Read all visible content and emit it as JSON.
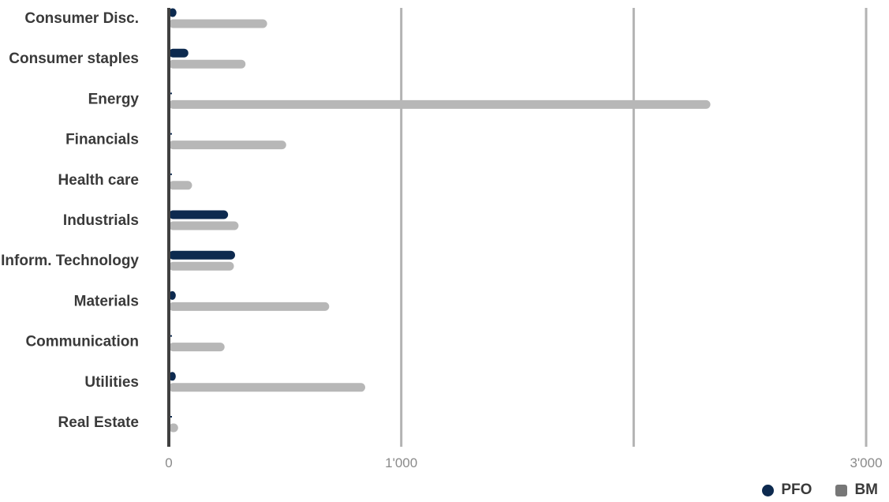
{
  "chart_data": {
    "type": "bar",
    "orientation": "horizontal",
    "categories": [
      "Consumer Disc.",
      "Consumer staples",
      "Energy",
      "Financials",
      "Health care",
      "Industrials",
      "Inform. Technology",
      "Materials",
      "Communication",
      "Utilities",
      "Real Estate"
    ],
    "series": [
      {
        "name": "PFO",
        "color": "#0d2a4f",
        "values": [
          33,
          84,
          0,
          0,
          0,
          255,
          285,
          30,
          0,
          30,
          0
        ]
      },
      {
        "name": "BM",
        "color": "#b7b7b7",
        "values": [
          423,
          330,
          2330,
          505,
          100,
          300,
          280,
          690,
          240,
          845,
          40
        ]
      }
    ],
    "xlim": [
      0,
      3000
    ],
    "gridlines": [
      1000,
      2000,
      3000
    ],
    "tick_labels": [
      {
        "value": 0,
        "label": "0"
      },
      {
        "value": 1000,
        "label": "1'000"
      },
      {
        "value": 3000,
        "label": "3'000"
      }
    ],
    "legend": {
      "placement": "bottom-right",
      "items": [
        "PFO",
        "BM"
      ]
    },
    "grid": true,
    "title": "",
    "xlabel": "",
    "ylabel": ""
  }
}
